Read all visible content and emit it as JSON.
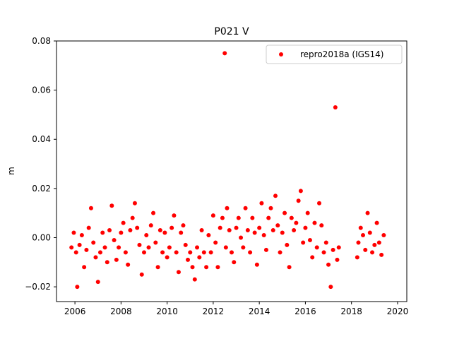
{
  "chart_data": {
    "type": "scatter",
    "title": "P021 V",
    "xlabel": "",
    "ylabel": "m",
    "xlim": [
      2005.2,
      2020.4
    ],
    "ylim": [
      -0.026,
      0.08
    ],
    "grid": false,
    "legend_position": "top-right",
    "x_ticks": [
      2006,
      2008,
      2010,
      2012,
      2014,
      2016,
      2018,
      2020
    ],
    "x_tick_labels": [
      "2006",
      "2008",
      "2010",
      "2012",
      "2014",
      "2016",
      "2018",
      "2020"
    ],
    "y_ticks": [
      -0.02,
      0.0,
      0.02,
      0.04,
      0.06,
      0.08
    ],
    "y_tick_labels": [
      "−0.02",
      "0.00",
      "0.02",
      "0.04",
      "0.06",
      "0.08"
    ],
    "series": [
      {
        "name": "repro2018a (IGS14)",
        "color": "#ff0000",
        "marker": "circle",
        "x": [
          2005.85,
          2005.95,
          2006.05,
          2006.1,
          2006.2,
          2006.3,
          2006.4,
          2006.5,
          2006.6,
          2006.7,
          2006.8,
          2006.9,
          2007.0,
          2007.1,
          2007.2,
          2007.3,
          2007.4,
          2007.5,
          2007.6,
          2007.7,
          2007.8,
          2007.9,
          2008.0,
          2008.1,
          2008.2,
          2008.3,
          2008.4,
          2008.5,
          2008.6,
          2008.7,
          2008.8,
          2008.9,
          2009.0,
          2009.1,
          2009.2,
          2009.3,
          2009.4,
          2009.5,
          2009.6,
          2009.7,
          2009.8,
          2009.9,
          2010.0,
          2010.1,
          2010.2,
          2010.3,
          2010.4,
          2010.5,
          2010.6,
          2010.7,
          2010.8,
          2010.9,
          2011.0,
          2011.1,
          2011.2,
          2011.3,
          2011.4,
          2011.5,
          2011.6,
          2011.7,
          2011.8,
          2011.9,
          2012.0,
          2012.1,
          2012.2,
          2012.3,
          2012.4,
          2012.5,
          2012.55,
          2012.6,
          2012.7,
          2012.8,
          2012.9,
          2013.0,
          2013.1,
          2013.2,
          2013.3,
          2013.4,
          2013.5,
          2013.6,
          2013.7,
          2013.8,
          2013.9,
          2014.0,
          2014.1,
          2014.2,
          2014.3,
          2014.4,
          2014.5,
          2014.6,
          2014.7,
          2014.8,
          2014.9,
          2015.0,
          2015.1,
          2015.2,
          2015.3,
          2015.4,
          2015.5,
          2015.6,
          2015.7,
          2015.8,
          2015.9,
          2016.0,
          2016.1,
          2016.2,
          2016.3,
          2016.4,
          2016.5,
          2016.6,
          2016.7,
          2016.8,
          2016.9,
          2017.0,
          2017.1,
          2017.2,
          2017.3,
          2017.38,
          2017.45,
          2018.25,
          2018.3,
          2018.4,
          2018.5,
          2018.6,
          2018.7,
          2018.8,
          2018.9,
          2019.0,
          2019.1,
          2019.2,
          2019.3,
          2019.4
        ],
        "y": [
          -0.004,
          0.002,
          -0.006,
          -0.02,
          -0.003,
          0.001,
          -0.012,
          -0.005,
          0.004,
          0.012,
          -0.002,
          -0.008,
          -0.018,
          -0.006,
          0.002,
          -0.004,
          -0.01,
          0.003,
          0.013,
          -0.001,
          -0.009,
          -0.004,
          0.002,
          0.006,
          -0.006,
          -0.011,
          0.003,
          0.008,
          0.014,
          0.004,
          -0.003,
          -0.015,
          -0.006,
          0.001,
          -0.004,
          0.005,
          0.01,
          -0.002,
          -0.012,
          0.003,
          -0.006,
          0.002,
          -0.008,
          -0.004,
          0.004,
          0.009,
          -0.006,
          -0.014,
          0.002,
          0.005,
          -0.003,
          -0.009,
          -0.006,
          -0.012,
          -0.017,
          -0.004,
          -0.008,
          0.003,
          -0.006,
          -0.012,
          0.001,
          -0.006,
          0.009,
          -0.002,
          -0.012,
          0.004,
          0.008,
          0.075,
          -0.004,
          0.012,
          0.003,
          -0.006,
          -0.01,
          0.004,
          0.008,
          0.0,
          -0.004,
          0.012,
          0.003,
          -0.006,
          0.008,
          0.002,
          -0.011,
          0.004,
          0.014,
          0.001,
          -0.005,
          0.008,
          0.012,
          0.003,
          0.017,
          0.005,
          -0.006,
          0.002,
          0.01,
          -0.003,
          -0.012,
          0.008,
          0.003,
          0.006,
          0.015,
          0.019,
          -0.002,
          0.004,
          0.01,
          -0.001,
          -0.008,
          0.006,
          -0.004,
          0.014,
          0.005,
          -0.006,
          -0.002,
          -0.011,
          -0.02,
          -0.005,
          0.053,
          -0.009,
          -0.004,
          -0.008,
          -0.002,
          0.004,
          0.001,
          -0.005,
          0.01,
          0.002,
          -0.006,
          -0.003,
          0.006,
          -0.002,
          -0.007,
          0.001
        ]
      }
    ]
  }
}
